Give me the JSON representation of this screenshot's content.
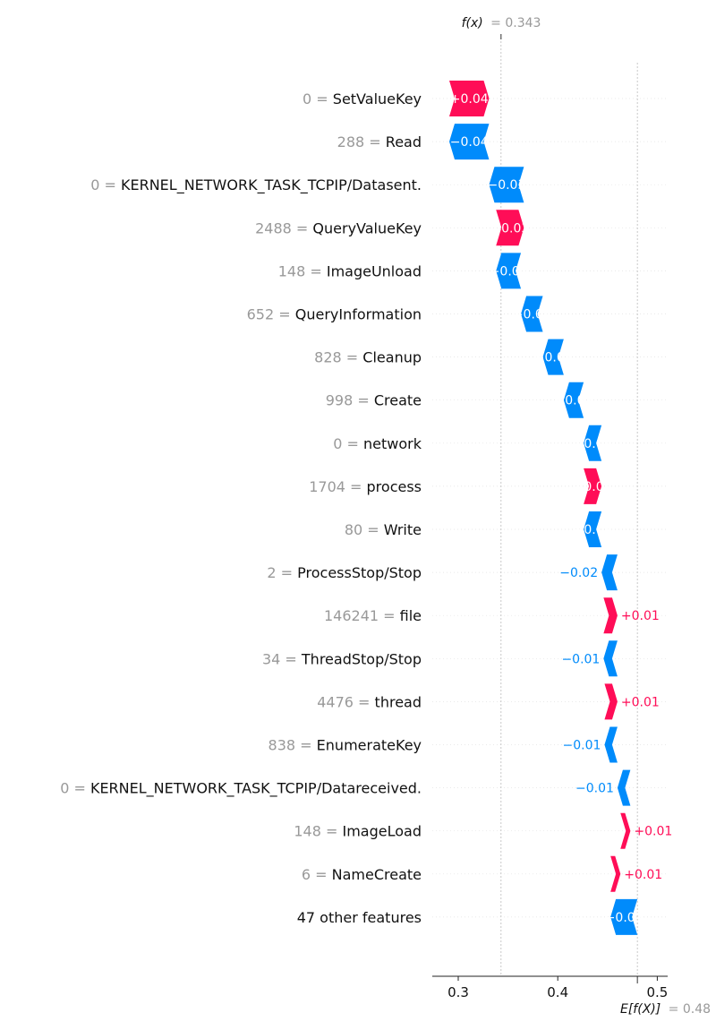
{
  "chart_data": {
    "type": "bar",
    "subtype": "waterfall",
    "fx_label": "f(x)",
    "fx_value_text": "= 0.343",
    "fx_value": 0.343,
    "efx_label": "E[f(X)]",
    "efx_value_text": "= 0.48",
    "efx_value": 0.48,
    "xlim": [
      0.27,
      0.51
    ],
    "xticks": [
      0.3,
      0.4,
      0.5
    ],
    "xtick_labels": [
      "0.3",
      "0.4",
      "0.5"
    ],
    "colors": {
      "positive": "#ff0d57",
      "negative": "#008bfb",
      "feature_value": "#999999",
      "feature_name": "#111111",
      "line": "#bbbbbb"
    },
    "features": [
      {
        "value": "0",
        "name": "SetValueKey",
        "contribution": 0.04,
        "label": "+0.04"
      },
      {
        "value": "288",
        "name": "Read",
        "contribution": -0.04,
        "label": "−0.04"
      },
      {
        "value": "0",
        "name": "KERNEL_NETWORK_TASK_TCPIP/Datasent.",
        "contribution": -0.035,
        "label": "−0.03"
      },
      {
        "value": "2488",
        "name": "QueryValueKey",
        "contribution": 0.028,
        "label": "+0.03"
      },
      {
        "value": "148",
        "name": "ImageUnload",
        "contribution": -0.025,
        "label": "−0.03"
      },
      {
        "value": "652",
        "name": "QueryInformation",
        "contribution": -0.022,
        "label": "−0.02"
      },
      {
        "value": "828",
        "name": "Cleanup",
        "contribution": -0.021,
        "label": "−0.02"
      },
      {
        "value": "998",
        "name": "Create",
        "contribution": -0.02,
        "label": "−0.02"
      },
      {
        "value": "0",
        "name": "network",
        "contribution": -0.018,
        "label": "−0.02"
      },
      {
        "value": "1704",
        "name": "process",
        "contribution": 0.018,
        "label": "+0.02"
      },
      {
        "value": "80",
        "name": "Write",
        "contribution": -0.018,
        "label": "−0.02"
      },
      {
        "value": "2",
        "name": "ProcessStop/Stop",
        "contribution": -0.016,
        "label": "−0.02"
      },
      {
        "value": "146241",
        "name": "file",
        "contribution": 0.014,
        "label": "+0.01"
      },
      {
        "value": "34",
        "name": "ThreadStop/Stop",
        "contribution": -0.014,
        "label": "−0.01"
      },
      {
        "value": "4476",
        "name": "thread",
        "contribution": 0.013,
        "label": "+0.01"
      },
      {
        "value": "838",
        "name": "EnumerateKey",
        "contribution": -0.013,
        "label": "−0.01"
      },
      {
        "value": "0",
        "name": "KERNEL_NETWORK_TASK_TCPIP/Datareceived.",
        "contribution": -0.013,
        "label": "−0.01"
      },
      {
        "value": "148",
        "name": "ImageLoad",
        "contribution": 0.01,
        "label": "+0.01"
      },
      {
        "value": "6",
        "name": "NameCreate",
        "contribution": 0.01,
        "label": "+0.01"
      },
      {
        "value": "",
        "name": "47 other features",
        "contribution": -0.027,
        "label": "−0.03"
      }
    ]
  }
}
